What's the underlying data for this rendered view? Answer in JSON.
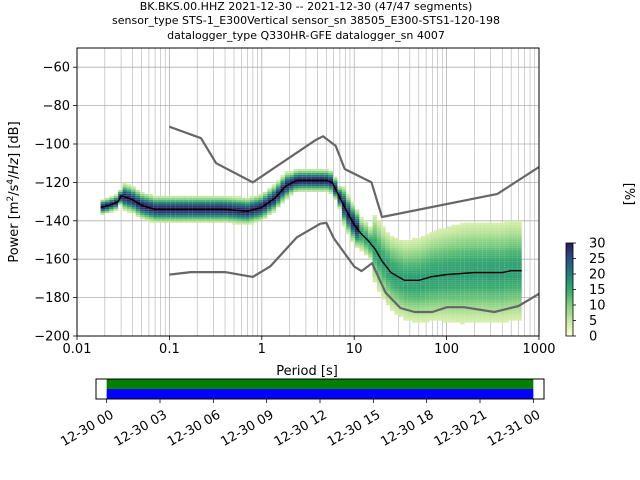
{
  "title_lines": [
    "BK.BKS.00.HHZ   2021-12-30 -- 2021-12-30  (47/47 segments)",
    "sensor_type STS-1_E300Vertical sensor_sn 38505_E300-STS1-120-198",
    "datalogger_type Q330HR-GFE datalogger_sn 4007"
  ],
  "chart_data": {
    "type": "heatmap",
    "xlabel": "Period [s]",
    "ylabel": "Power [m2/s4/Hz] [dB]",
    "x_scale": "log",
    "xlim": [
      0.01,
      1000
    ],
    "ylim": [
      -200,
      -50
    ],
    "x_ticks": [
      0.01,
      0.1,
      1,
      10,
      100,
      1000
    ],
    "x_tick_labels": [
      "0.01",
      "0.1",
      "1",
      "10",
      "100",
      "1000"
    ],
    "y_ticks": [
      -200,
      -180,
      -160,
      -140,
      -120,
      -100,
      -80,
      -60
    ],
    "y_tick_labels": [
      "−200",
      "−180",
      "−160",
      "−140",
      "−120",
      "−100",
      "−80",
      "−60"
    ],
    "grid": true,
    "colorbar": {
      "label": "[%]",
      "ticks": [
        0,
        5,
        10,
        15,
        20,
        25,
        30
      ],
      "range": [
        0,
        30
      ],
      "colormap": [
        "#ffffcc",
        "#c7e9a0",
        "#7fcd7f",
        "#35a96e",
        "#1e7f79",
        "#2a4f86",
        "#2c1d55"
      ]
    },
    "model_high": [
      [
        0.1,
        -91
      ],
      [
        0.22,
        -97
      ],
      [
        0.32,
        -110
      ],
      [
        0.8,
        -120
      ],
      [
        3.8,
        -98
      ],
      [
        4.6,
        -96
      ],
      [
        6.3,
        -101
      ],
      [
        7.9,
        -113
      ],
      [
        15.4,
        -120
      ],
      [
        20,
        -138
      ],
      [
        354.8,
        -126
      ],
      [
        1000,
        -112
      ]
    ],
    "model_low": [
      [
        0.1,
        -168
      ],
      [
        0.17,
        -166.7
      ],
      [
        0.4,
        -166.7
      ],
      [
        0.8,
        -169.2
      ],
      [
        1.24,
        -163.7
      ],
      [
        2.4,
        -148.6
      ],
      [
        4.3,
        -141.5
      ],
      [
        5,
        -141.1
      ],
      [
        6,
        -149
      ],
      [
        10,
        -163.8
      ],
      [
        12,
        -166.2
      ],
      [
        15.6,
        -162.1
      ],
      [
        21.9,
        -177.5
      ],
      [
        31.6,
        -185.4
      ],
      [
        45,
        -187.5
      ],
      [
        70,
        -187.5
      ],
      [
        101,
        -185
      ],
      [
        154,
        -185
      ],
      [
        328,
        -187.5
      ],
      [
        600,
        -184.4
      ],
      [
        1000,
        -178
      ]
    ],
    "mean_curve": [
      [
        0.018,
        -133
      ],
      [
        0.022,
        -132
      ],
      [
        0.025,
        -131
      ],
      [
        0.028,
        -130
      ],
      [
        0.03,
        -127
      ],
      [
        0.035,
        -128
      ],
      [
        0.04,
        -129
      ],
      [
        0.05,
        -132
      ],
      [
        0.07,
        -134
      ],
      [
        0.1,
        -134
      ],
      [
        0.2,
        -134
      ],
      [
        0.4,
        -134
      ],
      [
        0.7,
        -135
      ],
      [
        1,
        -133
      ],
      [
        1.4,
        -128
      ],
      [
        1.8,
        -122
      ],
      [
        2.4,
        -119
      ],
      [
        3,
        -119
      ],
      [
        4,
        -119
      ],
      [
        5,
        -119
      ],
      [
        5.8,
        -120
      ],
      [
        7,
        -128
      ],
      [
        8.5,
        -136
      ],
      [
        10,
        -142
      ],
      [
        12,
        -147
      ],
      [
        14,
        -150
      ],
      [
        17,
        -155
      ],
      [
        20,
        -161
      ],
      [
        25,
        -167
      ],
      [
        35,
        -171
      ],
      [
        50,
        -171
      ],
      [
        70,
        -169
      ],
      [
        100,
        -168
      ],
      [
        200,
        -167
      ],
      [
        400,
        -167
      ],
      [
        500,
        -166
      ],
      [
        650,
        -166
      ]
    ],
    "time_axis": {
      "tick_labels": [
        "12-30 00",
        "12-30 03",
        "12-30 06",
        "12-30 09",
        "12-30 12",
        "12-30 15",
        "12-30 18",
        "12-30 21",
        "12-31 00"
      ],
      "range_hours": [
        -0.6,
        24.6
      ],
      "coverage_hours": [
        0,
        24
      ],
      "bar_colors": {
        "data": "#008000",
        "gaps_used": "#0000ff"
      }
    },
    "segments_used": 47,
    "segments_total": 47
  }
}
